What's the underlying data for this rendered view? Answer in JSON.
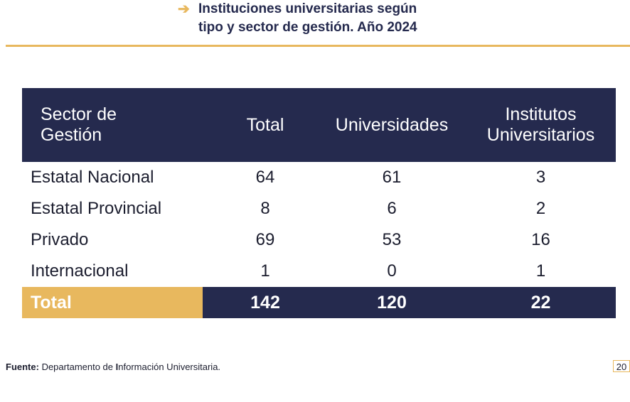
{
  "title": {
    "line1": "Instituciones universitarias según",
    "line2": "tipo y sector de gestión. Año 2024"
  },
  "colors": {
    "navy": "#252a4e",
    "gold": "#e8b85e"
  },
  "table": {
    "headers": [
      [
        "Sector de",
        "Gestión"
      ],
      [
        "Total"
      ],
      [
        "Universidades"
      ],
      [
        "Institutos",
        "Universitarios"
      ]
    ],
    "rows": [
      [
        "Estatal Nacional",
        "64",
        "61",
        "3"
      ],
      [
        "Estatal Provincial",
        "8",
        "6",
        "2"
      ],
      [
        "Privado",
        "69",
        "53",
        "16"
      ],
      [
        "Internacional",
        "1",
        "0",
        "1"
      ]
    ],
    "total": [
      "Total",
      "142",
      "120",
      "22"
    ]
  },
  "footer": {
    "label": "Fuente:",
    "text_before": " Departamento de ",
    "bold_letter": "I",
    "text_after": "nformación Universitaria.",
    "page": "20"
  }
}
